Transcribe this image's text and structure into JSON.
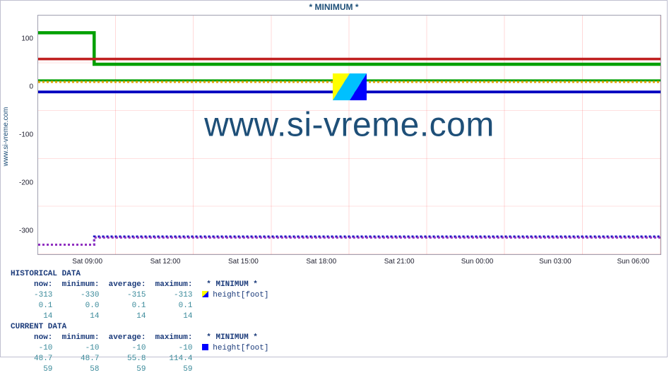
{
  "title": "* MINIMUM *",
  "ylabel": "www.si-vreme.com",
  "watermark_text": "www.si-vreme.com",
  "watermark_color": "#1e4f78",
  "chart": {
    "type": "line",
    "background_color": "#ffffff",
    "grid_color": "rgba(255,0,0,0.15)",
    "ylim": [
      -350,
      150
    ],
    "yticks": [
      -300,
      -200,
      -100,
      0,
      100
    ],
    "xticks": [
      "Sat 09:00",
      "Sat 12:00",
      "Sat 15:00",
      "Sat 18:00",
      "Sat 21:00",
      "Sun 00:00",
      "Sun 03:00",
      "Sun 06:00"
    ],
    "xtick_positions_pct": [
      8,
      20.5,
      33,
      45.5,
      58,
      70.5,
      83,
      95.5
    ],
    "series": [
      {
        "name": "green-step",
        "color": "#00a000",
        "width": 1.5,
        "points": [
          [
            0,
            114
          ],
          [
            9,
            114
          ],
          [
            9,
            48
          ],
          [
            100,
            48
          ]
        ]
      },
      {
        "name": "red-line",
        "color": "#c02020",
        "width": 1.2,
        "points": [
          [
            0,
            59
          ],
          [
            100,
            59
          ]
        ]
      },
      {
        "name": "green2",
        "color": "#00a000",
        "width": 1,
        "points": [
          [
            0,
            14
          ],
          [
            100,
            14
          ]
        ]
      },
      {
        "name": "orange-dash",
        "color": "#e0a000",
        "width": 1,
        "dash": "3,3",
        "points": [
          [
            0,
            11
          ],
          [
            100,
            11
          ]
        ]
      },
      {
        "name": "blue-line",
        "color": "#0000c0",
        "width": 1.3,
        "points": [
          [
            0,
            -10
          ],
          [
            100,
            -10
          ]
        ]
      },
      {
        "name": "blue-dash-low",
        "color": "#0000c0",
        "width": 1,
        "dash": "3,3",
        "points": [
          [
            0,
            -330
          ],
          [
            9,
            -330
          ],
          [
            9,
            -313
          ],
          [
            100,
            -313
          ]
        ]
      },
      {
        "name": "purple-dash",
        "color": "#9030c0",
        "width": 1,
        "dash": "3,3",
        "points": [
          [
            0,
            -330
          ],
          [
            9,
            -330
          ],
          [
            9,
            -315
          ],
          [
            100,
            -315
          ]
        ]
      }
    ]
  },
  "legend": {
    "historical_header": "HISTORICAL DATA",
    "current_header": "CURRENT DATA",
    "columns": [
      "now:",
      "minimum:",
      "average:",
      "maximum:"
    ],
    "minimum_label": "* MINIMUM *",
    "series_label": "height[foot]",
    "marker_half_colors": [
      "#ffff00",
      "#0000ff"
    ],
    "marker_full_color": "#0000ff",
    "historical": [
      [
        "-313",
        "-330",
        "-315",
        "-313"
      ],
      [
        "0.1",
        "0.0",
        "0.1",
        "0.1"
      ],
      [
        "14",
        "14",
        "14",
        "14"
      ]
    ],
    "current": [
      [
        "-10",
        "-10",
        "-10",
        "-10"
      ],
      [
        "48.7",
        "48.7",
        "55.8",
        "114.4"
      ],
      [
        "59",
        "58",
        "59",
        "59"
      ]
    ]
  }
}
